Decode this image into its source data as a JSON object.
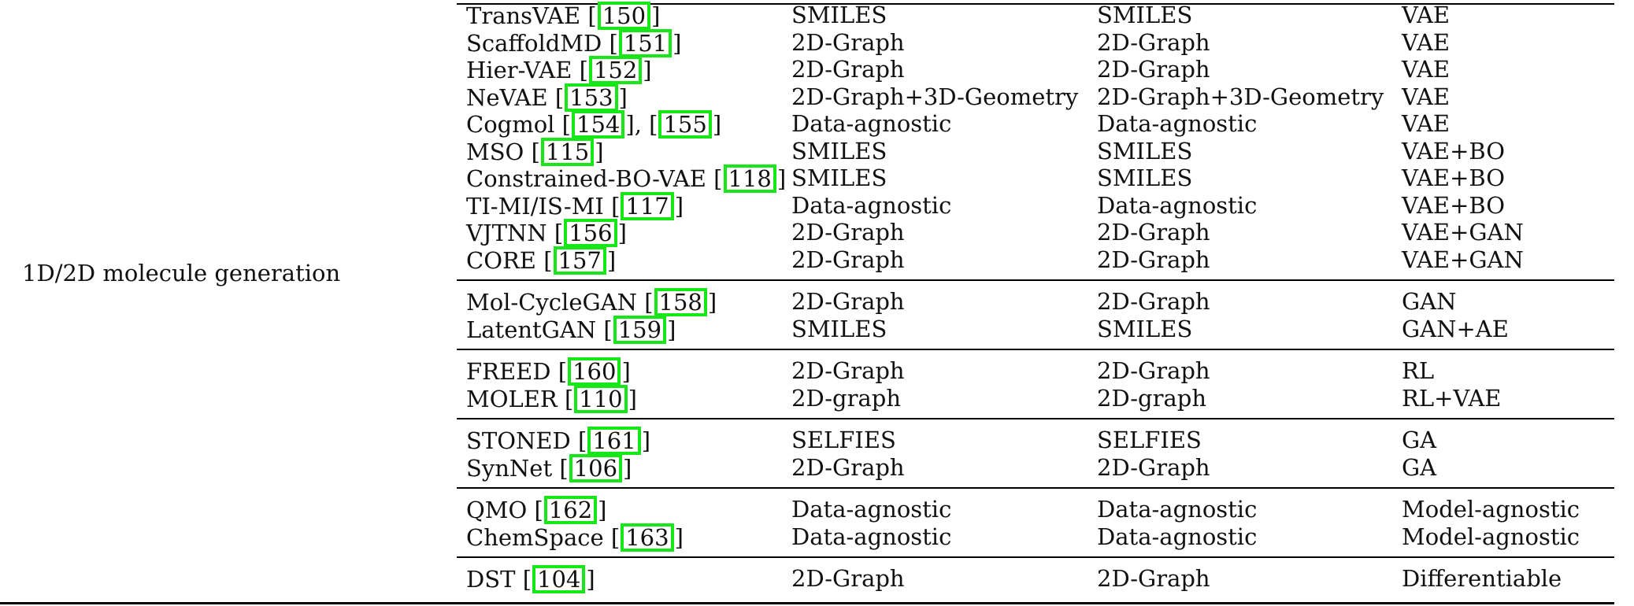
{
  "table": {
    "row_label": "1D/2D molecule generation",
    "groups": [
      {
        "rows": [
          {
            "method": "TransVAE",
            "citations": [
              "150"
            ],
            "input": "SMILES",
            "output": "SMILES",
            "model": "VAE"
          },
          {
            "method": "ScaffoldMD",
            "citations": [
              "151"
            ],
            "input": "2D-Graph",
            "output": "2D-Graph",
            "model": "VAE"
          },
          {
            "method": "Hier-VAE",
            "citations": [
              "152"
            ],
            "input": "2D-Graph",
            "output": "2D-Graph",
            "model": "VAE"
          },
          {
            "method": "NeVAE",
            "citations": [
              "153"
            ],
            "input": "2D-Graph+3D-Geometry",
            "output": "2D-Graph+3D-Geometry",
            "model": "VAE"
          },
          {
            "method": "Cogmol",
            "citations": [
              "154",
              "155"
            ],
            "input": "Data-agnostic",
            "output": "Data-agnostic",
            "model": "VAE"
          },
          {
            "method": "MSO",
            "citations": [
              "115"
            ],
            "input": "SMILES",
            "output": "SMILES",
            "model": "VAE+BO"
          },
          {
            "method": "Constrained-BO-VAE",
            "citations": [
              "118"
            ],
            "input": "SMILES",
            "output": "SMILES",
            "model": "VAE+BO"
          },
          {
            "method": "TI-MI/IS-MI",
            "citations": [
              "117"
            ],
            "input": "Data-agnostic",
            "output": "Data-agnostic",
            "model": "VAE+BO"
          },
          {
            "method": "VJTNN",
            "citations": [
              "156"
            ],
            "input": "2D-Graph",
            "output": "2D-Graph",
            "model": "VAE+GAN"
          },
          {
            "method": "CORE",
            "citations": [
              "157"
            ],
            "input": "2D-Graph",
            "output": "2D-Graph",
            "model": "VAE+GAN"
          }
        ]
      },
      {
        "rows": [
          {
            "method": "Mol-CycleGAN",
            "citations": [
              "158"
            ],
            "input": "2D-Graph",
            "output": "2D-Graph",
            "model": "GAN"
          },
          {
            "method": "LatentGAN",
            "citations": [
              "159"
            ],
            "input": "SMILES",
            "output": "SMILES",
            "model": "GAN+AE"
          }
        ]
      },
      {
        "rows": [
          {
            "method": "FREED",
            "citations": [
              "160"
            ],
            "input": "2D-Graph",
            "output": "2D-Graph",
            "model": "RL"
          },
          {
            "method": "MOLER",
            "citations": [
              "110"
            ],
            "input": "2D-graph",
            "output": "2D-graph",
            "model": "RL+VAE"
          }
        ]
      },
      {
        "rows": [
          {
            "method": "STONED",
            "citations": [
              "161"
            ],
            "input": "SELFIES",
            "output": "SELFIES",
            "model": "GA"
          },
          {
            "method": "SynNet",
            "citations": [
              "106"
            ],
            "input": "2D-Graph",
            "output": "2D-Graph",
            "model": "GA"
          }
        ]
      },
      {
        "rows": [
          {
            "method": "QMO",
            "citations": [
              "162"
            ],
            "input": "Data-agnostic",
            "output": "Data-agnostic",
            "model": "Model-agnostic"
          },
          {
            "method": "ChemSpace",
            "citations": [
              "163"
            ],
            "input": "Data-agnostic",
            "output": "Data-agnostic",
            "model": "Model-agnostic"
          }
        ]
      },
      {
        "rows": [
          {
            "method": "DST",
            "citations": [
              "104"
            ],
            "input": "2D-Graph",
            "output": "2D-Graph",
            "model": "Differentiable"
          }
        ]
      }
    ]
  }
}
